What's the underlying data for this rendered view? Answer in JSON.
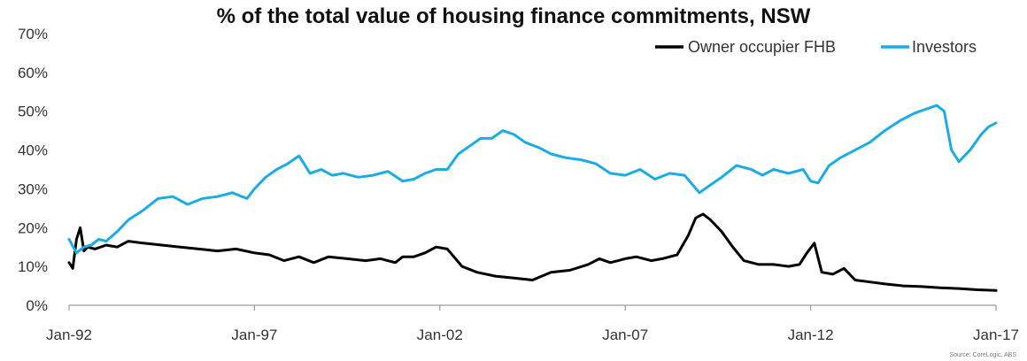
{
  "chart_data": {
    "type": "line",
    "title": "% of the total value of housing finance commitments, NSW",
    "xlabel": "",
    "ylabel": "",
    "ylim": [
      0,
      70
    ],
    "yticks": [
      "0%",
      "10%",
      "20%",
      "30%",
      "40%",
      "50%",
      "60%",
      "70%"
    ],
    "xlim": [
      1992.0,
      2017.0
    ],
    "xticks": [
      "Jan-92",
      "Jan-97",
      "Jan-02",
      "Jan-07",
      "Jan-12",
      "Jan-17"
    ],
    "grid": false,
    "legend": "top-right",
    "source": "Source: CoreLogic, ABS",
    "series": [
      {
        "name": "Owner occupier FHB",
        "color": "#000000",
        "x": [
          1992.0,
          1992.1,
          1992.2,
          1992.3,
          1992.4,
          1992.5,
          1992.7,
          1993.0,
          1993.3,
          1993.6,
          1994.0,
          1994.5,
          1995.0,
          1995.5,
          1996.0,
          1996.5,
          1997.0,
          1997.4,
          1997.8,
          1998.2,
          1998.6,
          1999.0,
          1999.5,
          2000.0,
          2000.4,
          2000.8,
          2001.0,
          2001.3,
          2001.6,
          2001.9,
          2002.2,
          2002.6,
          2003.0,
          2003.5,
          2004.0,
          2004.5,
          2005.0,
          2005.5,
          2006.0,
          2006.3,
          2006.6,
          2007.0,
          2007.3,
          2007.7,
          2008.0,
          2008.4,
          2008.7,
          2008.9,
          2009.1,
          2009.3,
          2009.6,
          2009.9,
          2010.2,
          2010.6,
          2011.0,
          2011.4,
          2011.7,
          2011.9,
          2012.1,
          2012.3,
          2012.6,
          2012.9,
          2013.2,
          2013.6,
          2014.0,
          2014.5,
          2015.0,
          2015.5,
          2016.0,
          2016.5,
          2017.0
        ],
        "values": [
          11.0,
          9.5,
          17.0,
          20.0,
          14.0,
          15.0,
          14.5,
          15.5,
          15.0,
          16.5,
          16.0,
          15.5,
          15.0,
          14.5,
          14.0,
          14.5,
          13.5,
          13.0,
          11.5,
          12.5,
          11.0,
          12.5,
          12.0,
          11.5,
          12.0,
          11.0,
          12.5,
          12.5,
          13.5,
          15.0,
          14.5,
          10.0,
          8.5,
          7.5,
          7.0,
          6.5,
          8.5,
          9.0,
          10.5,
          12.0,
          11.0,
          12.0,
          12.5,
          11.5,
          12.0,
          13.0,
          18.0,
          22.5,
          23.5,
          22.0,
          19.0,
          15.0,
          11.5,
          10.5,
          10.5,
          10.0,
          10.5,
          13.5,
          16.0,
          8.5,
          8.0,
          9.5,
          6.5,
          6.0,
          5.5,
          5.0,
          4.8,
          4.5,
          4.3,
          4.0,
          3.8
        ]
      },
      {
        "name": "Investors",
        "color": "#1aace4",
        "x": [
          1992.0,
          1992.2,
          1992.4,
          1992.6,
          1992.8,
          1993.0,
          1993.3,
          1993.6,
          1994.0,
          1994.4,
          1994.8,
          1995.2,
          1995.6,
          1996.0,
          1996.4,
          1996.8,
          1997.0,
          1997.3,
          1997.6,
          1997.9,
          1998.2,
          1998.5,
          1998.8,
          1999.1,
          1999.4,
          1999.8,
          2000.2,
          2000.6,
          2001.0,
          2001.3,
          2001.6,
          2001.9,
          2002.2,
          2002.5,
          2002.8,
          2003.1,
          2003.4,
          2003.7,
          2004.0,
          2004.3,
          2004.7,
          2005.0,
          2005.4,
          2005.8,
          2006.2,
          2006.6,
          2007.0,
          2007.4,
          2007.8,
          2008.2,
          2008.6,
          2009.0,
          2009.3,
          2009.6,
          2010.0,
          2010.4,
          2010.7,
          2011.0,
          2011.4,
          2011.8,
          2012.0,
          2012.2,
          2012.5,
          2012.8,
          2013.2,
          2013.6,
          2014.0,
          2014.4,
          2014.8,
          2015.1,
          2015.4,
          2015.6,
          2015.8,
          2016.0,
          2016.3,
          2016.6,
          2016.8,
          2017.0
        ],
        "values": [
          17.0,
          13.5,
          15.0,
          15.5,
          17.0,
          16.5,
          19.0,
          22.0,
          24.5,
          27.5,
          28.0,
          26.0,
          27.5,
          28.0,
          29.0,
          27.5,
          30.0,
          33.0,
          35.0,
          36.5,
          38.5,
          34.0,
          35.0,
          33.5,
          34.0,
          33.0,
          33.5,
          34.5,
          32.0,
          32.5,
          34.0,
          35.0,
          35.0,
          39.0,
          41.0,
          43.0,
          43.0,
          45.0,
          44.0,
          42.0,
          40.5,
          39.0,
          38.0,
          37.5,
          36.5,
          34.0,
          33.5,
          35.0,
          32.5,
          34.0,
          33.5,
          29.0,
          31.0,
          33.0,
          36.0,
          35.0,
          33.5,
          35.0,
          34.0,
          35.0,
          32.0,
          31.5,
          36.0,
          38.0,
          40.0,
          42.0,
          45.0,
          47.5,
          49.5,
          50.5,
          51.5,
          50.0,
          40.0,
          37.0,
          40.0,
          44.0,
          46.0,
          47.0
        ]
      }
    ]
  }
}
